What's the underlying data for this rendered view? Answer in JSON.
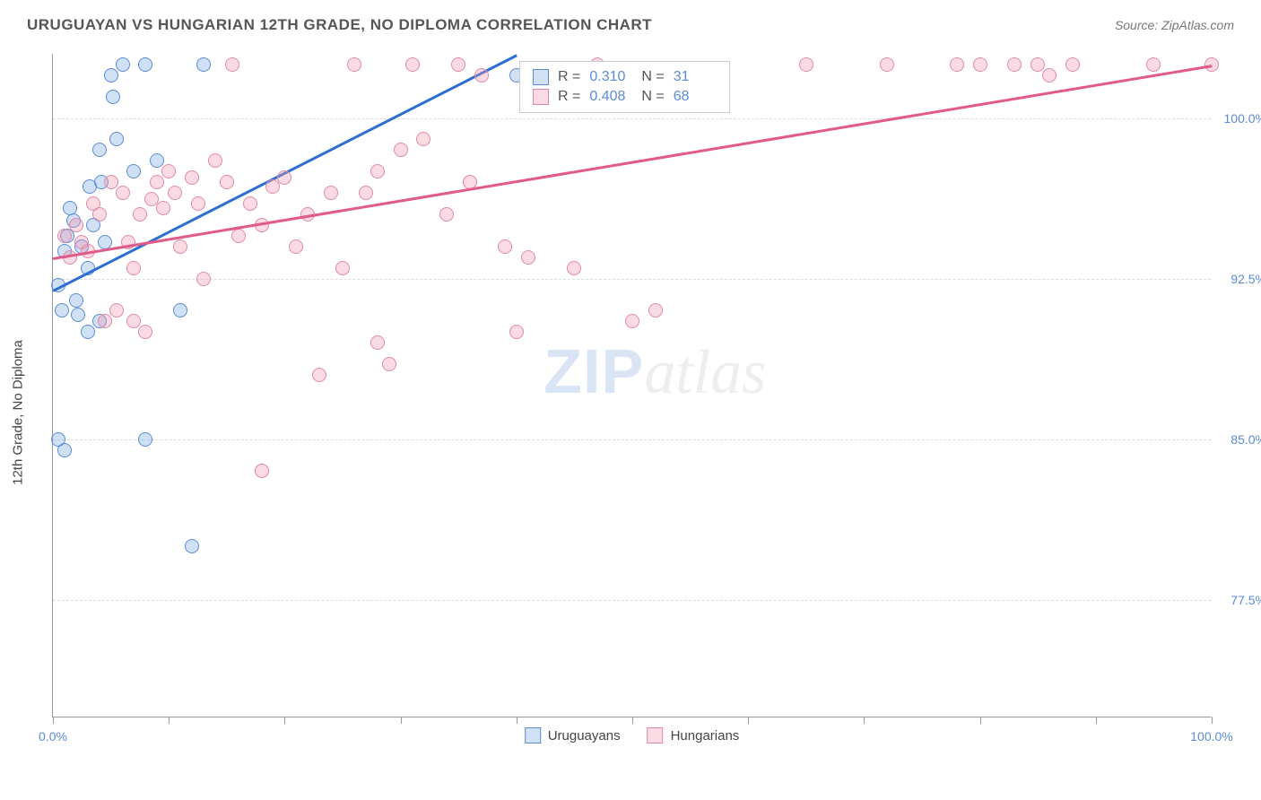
{
  "header": {
    "title": "URUGUAYAN VS HUNGARIAN 12TH GRADE, NO DIPLOMA CORRELATION CHART",
    "source": "Source: ZipAtlas.com"
  },
  "chart": {
    "type": "scatter",
    "ylabel": "12th Grade, No Diploma",
    "xlim": [
      0,
      100
    ],
    "ylim": [
      72,
      103
    ],
    "xticks": [
      0,
      10,
      20,
      30,
      40,
      50,
      60,
      70,
      80,
      90,
      100
    ],
    "xtick_labels": {
      "0": "0.0%",
      "100": "100.0%"
    },
    "yticks": [
      77.5,
      85.0,
      92.5,
      100.0
    ],
    "ytick_labels": [
      "77.5%",
      "85.0%",
      "92.5%",
      "100.0%"
    ],
    "background_color": "#ffffff",
    "grid_color": "#dddddd",
    "axis_color": "#999999",
    "label_color": "#5b8bd4",
    "watermark": {
      "zip": "ZIP",
      "atlas": "atlas"
    },
    "series": [
      {
        "name": "Uruguayans",
        "marker_fill": "rgba(120,170,230,0.35)",
        "marker_stroke": "#5b8bd4",
        "line_color": "#2c6fd1",
        "r_value": "0.310",
        "n_value": "31",
        "trend": {
          "x1": 0,
          "y1": 92.0,
          "x2": 40,
          "y2": 103.0
        },
        "points": [
          [
            0.5,
            92.2
          ],
          [
            0.8,
            91.0
          ],
          [
            1.0,
            93.8
          ],
          [
            1.2,
            94.5
          ],
          [
            1.5,
            95.8
          ],
          [
            1.8,
            95.2
          ],
          [
            2.0,
            91.5
          ],
          [
            2.2,
            90.8
          ],
          [
            2.5,
            94.0
          ],
          [
            3.0,
            93.0
          ],
          [
            3.2,
            96.8
          ],
          [
            3.5,
            95.0
          ],
          [
            4.0,
            98.5
          ],
          [
            4.2,
            97.0
          ],
          [
            4.5,
            94.2
          ],
          [
            5.0,
            102.0
          ],
          [
            5.2,
            101.0
          ],
          [
            5.5,
            99.0
          ],
          [
            6.0,
            102.5
          ],
          [
            7.0,
            97.5
          ],
          [
            8.0,
            102.5
          ],
          [
            9.0,
            98.0
          ],
          [
            3.0,
            90.0
          ],
          [
            4.0,
            90.5
          ],
          [
            0.5,
            85.0
          ],
          [
            1.0,
            84.5
          ],
          [
            8.0,
            85.0
          ],
          [
            11.0,
            91.0
          ],
          [
            13.0,
            102.5
          ],
          [
            12.0,
            80.0
          ],
          [
            40.0,
            102.0
          ]
        ]
      },
      {
        "name": "Hungarians",
        "marker_fill": "rgba(240,150,175,0.35)",
        "marker_stroke": "#e08aa5",
        "line_color": "#e05a8a",
        "r_value": "0.408",
        "n_value": "68",
        "trend": {
          "x1": 0,
          "y1": 93.5,
          "x2": 100,
          "y2": 102.5
        },
        "points": [
          [
            1.0,
            94.5
          ],
          [
            1.5,
            93.5
          ],
          [
            2.0,
            95.0
          ],
          [
            2.5,
            94.2
          ],
          [
            3.0,
            93.8
          ],
          [
            3.5,
            96.0
          ],
          [
            4.0,
            95.5
          ],
          [
            4.5,
            90.5
          ],
          [
            5.0,
            97.0
          ],
          [
            5.5,
            91.0
          ],
          [
            6.0,
            96.5
          ],
          [
            6.5,
            94.2
          ],
          [
            7.0,
            93.0
          ],
          [
            7.5,
            95.5
          ],
          [
            8.0,
            90.0
          ],
          [
            8.5,
            96.2
          ],
          [
            9.0,
            97.0
          ],
          [
            9.5,
            95.8
          ],
          [
            10.0,
            97.5
          ],
          [
            10.5,
            96.5
          ],
          [
            11.0,
            94.0
          ],
          [
            12.0,
            97.2
          ],
          [
            13.0,
            92.5
          ],
          [
            14.0,
            98.0
          ],
          [
            15.0,
            97.0
          ],
          [
            15.5,
            102.5
          ],
          [
            16.0,
            94.5
          ],
          [
            17.0,
            96.0
          ],
          [
            18.0,
            95.0
          ],
          [
            19.0,
            96.8
          ],
          [
            20.0,
            97.2
          ],
          [
            21.0,
            94.0
          ],
          [
            22.0,
            95.5
          ],
          [
            23.0,
            88.0
          ],
          [
            24.0,
            96.5
          ],
          [
            25.0,
            93.0
          ],
          [
            26.0,
            102.5
          ],
          [
            27.0,
            96.5
          ],
          [
            28.0,
            97.5
          ],
          [
            29.0,
            88.5
          ],
          [
            30.0,
            98.5
          ],
          [
            31.0,
            102.5
          ],
          [
            32.0,
            99.0
          ],
          [
            34.0,
            95.5
          ],
          [
            35.0,
            102.5
          ],
          [
            36.0,
            97.0
          ],
          [
            37.0,
            102.0
          ],
          [
            39.0,
            94.0
          ],
          [
            40.0,
            90.0
          ],
          [
            41.0,
            93.5
          ],
          [
            45.0,
            93.0
          ],
          [
            47.0,
            102.5
          ],
          [
            50.0,
            90.5
          ],
          [
            52.0,
            91.0
          ],
          [
            18.0,
            83.5
          ],
          [
            28.0,
            89.5
          ],
          [
            65.0,
            102.5
          ],
          [
            72.0,
            102.5
          ],
          [
            78.0,
            102.5
          ],
          [
            80.0,
            102.5
          ],
          [
            83.0,
            102.5
          ],
          [
            85.0,
            102.5
          ],
          [
            86.0,
            102.0
          ],
          [
            88.0,
            102.5
          ],
          [
            95.0,
            102.5
          ],
          [
            100.0,
            102.5
          ],
          [
            7.0,
            90.5
          ],
          [
            12.5,
            96.0
          ]
        ]
      }
    ],
    "legend_bottom": [
      {
        "label": "Uruguayans",
        "fill": "rgba(120,170,230,0.35)",
        "stroke": "#5b8bd4"
      },
      {
        "label": "Hungarians",
        "fill": "rgba(240,150,175,0.35)",
        "stroke": "#e08aa5"
      }
    ]
  }
}
